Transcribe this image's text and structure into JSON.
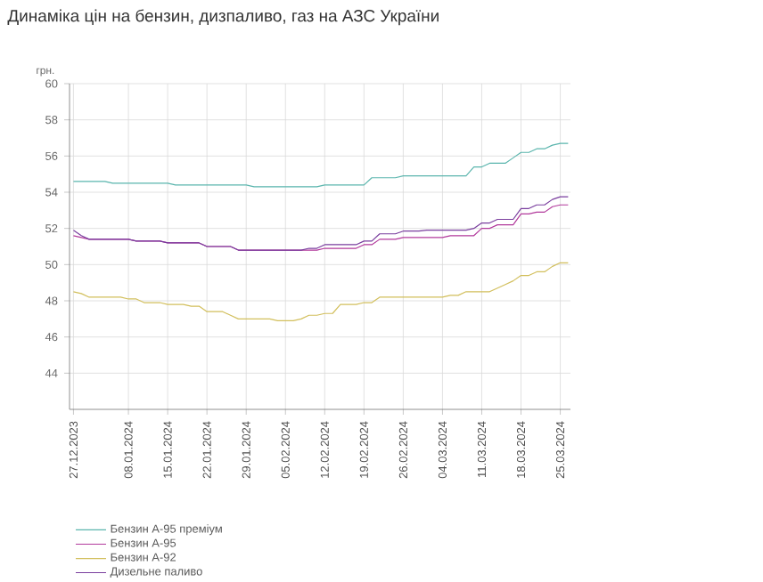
{
  "chart_data": {
    "type": "line",
    "title": "Динаміка цін на бензин, дизпаливо, газ на АЗС України",
    "ylabel": "грн.",
    "categories": [
      "27.12.2023",
      null,
      null,
      null,
      null,
      null,
      null,
      "08.01.2024",
      null,
      null,
      null,
      null,
      "15.01.2024",
      null,
      null,
      null,
      null,
      "22.01.2024",
      null,
      null,
      null,
      null,
      "29.01.2024",
      null,
      null,
      null,
      null,
      "05.02.2024",
      null,
      null,
      null,
      null,
      "12.02.2024",
      null,
      null,
      null,
      null,
      "19.02.2024",
      null,
      null,
      null,
      null,
      "26.02.2024",
      null,
      null,
      null,
      null,
      "04.03.2024",
      null,
      null,
      null,
      null,
      "11.03.2024",
      null,
      null,
      null,
      null,
      "18.03.2024",
      null,
      null,
      null,
      null,
      "25.03.2024",
      null
    ],
    "series": [
      {
        "name": "Бензин А-95 преміум",
        "color": "#5ab5ad",
        "values": [
          54.6,
          54.6,
          54.6,
          54.6,
          54.6,
          54.5,
          54.5,
          54.5,
          54.5,
          54.5,
          54.5,
          54.5,
          54.5,
          54.4,
          54.4,
          54.4,
          54.4,
          54.4,
          54.4,
          54.4,
          54.4,
          54.4,
          54.4,
          54.3,
          54.3,
          54.3,
          54.3,
          54.3,
          54.3,
          54.3,
          54.3,
          54.3,
          54.4,
          54.4,
          54.4,
          54.4,
          54.4,
          54.4,
          54.8,
          54.8,
          54.8,
          54.8,
          54.9,
          54.9,
          54.9,
          54.9,
          54.9,
          54.9,
          54.9,
          54.9,
          54.9,
          55.4,
          55.4,
          55.6,
          55.6,
          55.6,
          55.9,
          56.2,
          56.2,
          56.4,
          56.4,
          56.6,
          56.7,
          56.7
        ]
      },
      {
        "name": "Бензин А-95",
        "color": "#b23a9c",
        "values": [
          51.6,
          51.5,
          51.4,
          51.4,
          51.4,
          51.4,
          51.4,
          51.4,
          51.3,
          51.3,
          51.3,
          51.3,
          51.2,
          51.2,
          51.2,
          51.2,
          51.2,
          51.0,
          51.0,
          51.0,
          51.0,
          50.8,
          50.8,
          50.8,
          50.8,
          50.8,
          50.8,
          50.8,
          50.8,
          50.8,
          50.8,
          50.8,
          50.9,
          50.9,
          50.9,
          50.9,
          50.9,
          51.1,
          51.1,
          51.4,
          51.4,
          51.4,
          51.5,
          51.5,
          51.5,
          51.5,
          51.5,
          51.5,
          51.6,
          51.6,
          51.6,
          51.6,
          52.0,
          52.0,
          52.2,
          52.2,
          52.2,
          52.8,
          52.8,
          52.9,
          52.9,
          53.2,
          53.3,
          53.3
        ]
      },
      {
        "name": "Бензин А-92",
        "color": "#d2bf5c",
        "values": [
          48.5,
          48.4,
          48.2,
          48.2,
          48.2,
          48.2,
          48.2,
          48.1,
          48.1,
          47.9,
          47.9,
          47.9,
          47.8,
          47.8,
          47.8,
          47.7,
          47.7,
          47.4,
          47.4,
          47.4,
          47.2,
          47.0,
          47.0,
          47.0,
          47.0,
          47.0,
          46.9,
          46.9,
          46.9,
          47.0,
          47.2,
          47.2,
          47.3,
          47.3,
          47.8,
          47.8,
          47.8,
          47.9,
          47.9,
          48.2,
          48.2,
          48.2,
          48.2,
          48.2,
          48.2,
          48.2,
          48.2,
          48.2,
          48.3,
          48.3,
          48.5,
          48.5,
          48.5,
          48.5,
          48.7,
          48.9,
          49.1,
          49.4,
          49.4,
          49.6,
          49.6,
          49.9,
          50.1,
          50.1
        ]
      },
      {
        "name": "Дизельне паливо",
        "color": "#7a3e9e",
        "values": [
          51.9,
          51.6,
          51.4,
          51.4,
          51.4,
          51.4,
          51.4,
          51.4,
          51.3,
          51.3,
          51.3,
          51.3,
          51.2,
          51.2,
          51.2,
          51.2,
          51.2,
          51.0,
          51.0,
          51.0,
          51.0,
          50.8,
          50.8,
          50.8,
          50.8,
          50.8,
          50.8,
          50.8,
          50.8,
          50.8,
          50.9,
          50.9,
          51.1,
          51.1,
          51.1,
          51.1,
          51.1,
          51.3,
          51.3,
          51.7,
          51.7,
          51.7,
          51.85,
          51.85,
          51.85,
          51.9,
          51.9,
          51.9,
          51.9,
          51.9,
          51.9,
          52.0,
          52.3,
          52.3,
          52.5,
          52.5,
          52.5,
          53.1,
          53.1,
          53.3,
          53.3,
          53.6,
          53.75,
          53.75
        ]
      }
    ],
    "ylim": [
      42,
      60
    ],
    "yticks": [
      44,
      46,
      48,
      50,
      52,
      54,
      56,
      58,
      60
    ],
    "grid": true,
    "legend": "bottom left",
    "marker": "none",
    "line_style": "solid"
  }
}
